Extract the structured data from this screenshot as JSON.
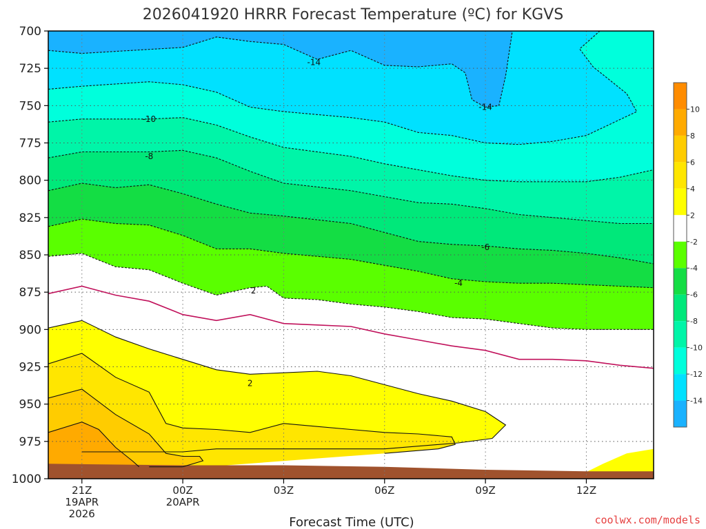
{
  "chart_data": {
    "type": "heatmap",
    "title": "2026041920 HRRR Forecast Temperature (ºC) for KGVS",
    "xlabel": "Forecast Time (UTC)",
    "credit": "coolwx.com/models",
    "y_pressure_levels": [
      700,
      725,
      750,
      775,
      800,
      825,
      850,
      875,
      900,
      925,
      950,
      975,
      1000
    ],
    "ylim": [
      700,
      1000
    ],
    "x_range_hours": [
      -1,
      17
    ],
    "x_ticks": [
      {
        "hour": 0,
        "lines": [
          "21Z",
          "19APR",
          "2026"
        ]
      },
      {
        "hour": 3,
        "lines": [
          "00Z",
          "20APR"
        ]
      },
      {
        "hour": 6,
        "lines": [
          "03Z"
        ]
      },
      {
        "hour": 9,
        "lines": [
          "06Z"
        ]
      },
      {
        "hour": 12,
        "lines": [
          "09Z"
        ]
      },
      {
        "hour": 15,
        "lines": [
          "12Z"
        ]
      }
    ],
    "grid": true,
    "colorbar": {
      "position": "right",
      "bins": [
        {
          "min": -16,
          "max": -14,
          "color": "#1ab2ff"
        },
        {
          "min": -14,
          "max": -12,
          "color": "#00e1ff"
        },
        {
          "min": -12,
          "max": -10,
          "color": "#00ffdc"
        },
        {
          "min": -10,
          "max": -8,
          "color": "#00f5a8"
        },
        {
          "min": -8,
          "max": -6,
          "color": "#00e87a"
        },
        {
          "min": -6,
          "max": -4,
          "color": "#14dd44"
        },
        {
          "min": -4,
          "max": -2,
          "color": "#5aff00"
        },
        {
          "min": -2,
          "max": 2,
          "color": "#ffffff"
        },
        {
          "min": 2,
          "max": 4,
          "color": "#ffff00"
        },
        {
          "min": 4,
          "max": 6,
          "color": "#ffe600"
        },
        {
          "min": 6,
          "max": 8,
          "color": "#ffcc00"
        },
        {
          "min": 8,
          "max": 10,
          "color": "#ffaa00"
        },
        {
          "min": 10,
          "max": 12,
          "color": "#ff8c00"
        }
      ],
      "tick_labels": [
        "10",
        "8",
        "6",
        "4",
        "2",
        "-2",
        "-4",
        "-6",
        "-8",
        "-10",
        "-12",
        "-14"
      ]
    },
    "contour_labels": [
      {
        "value": "-14",
        "hour": 6.9,
        "p": 721
      },
      {
        "value": "-14",
        "hour": 12.0,
        "p": 751
      },
      {
        "value": "-10",
        "hour": 2.0,
        "p": 759
      },
      {
        "value": "-8",
        "hour": 2.0,
        "p": 784
      },
      {
        "value": "-6",
        "hour": 12.0,
        "p": 845
      },
      {
        "value": "-4",
        "hour": 11.2,
        "p": 869
      },
      {
        "value": "2",
        "hour": 5.1,
        "p": 874
      },
      {
        "value": "2",
        "hour": 5.0,
        "p": 936
      }
    ],
    "isotherms": [
      {
        "temp": -14,
        "style": "dashed",
        "points": [
          [
            -1,
            713
          ],
          [
            0,
            715
          ],
          [
            3,
            711
          ],
          [
            4,
            704
          ],
          [
            5,
            707
          ],
          [
            6,
            709
          ],
          [
            7,
            719
          ],
          [
            8,
            713
          ],
          [
            9,
            723
          ],
          [
            10,
            724
          ],
          [
            11,
            722
          ],
          [
            11.4,
            728
          ],
          [
            11.6,
            746
          ],
          [
            12,
            751
          ],
          [
            12.4,
            750
          ],
          [
            12.6,
            730
          ],
          [
            12.8,
            700
          ]
        ]
      },
      {
        "temp": -12,
        "style": "dashed",
        "points": [
          [
            -1,
            739
          ],
          [
            0,
            737
          ],
          [
            2,
            734
          ],
          [
            3,
            736
          ],
          [
            4,
            741
          ],
          [
            5,
            751
          ],
          [
            6,
            754
          ],
          [
            8,
            758
          ],
          [
            9,
            761
          ],
          [
            10,
            768
          ],
          [
            11,
            770
          ],
          [
            12,
            775
          ],
          [
            13,
            776
          ],
          [
            14,
            774
          ],
          [
            15,
            770
          ],
          [
            16.5,
            754
          ],
          [
            16.2,
            742
          ],
          [
            15.2,
            724
          ],
          [
            14.8,
            712
          ],
          [
            15.4,
            700
          ]
        ]
      },
      {
        "temp": -10,
        "style": "dashed",
        "points": [
          [
            -1,
            761
          ],
          [
            0,
            759
          ],
          [
            2,
            759
          ],
          [
            3,
            758
          ],
          [
            4,
            763
          ],
          [
            5,
            771
          ],
          [
            6,
            778
          ],
          [
            8,
            784
          ],
          [
            9,
            789
          ],
          [
            10,
            793
          ],
          [
            11,
            797
          ],
          [
            12,
            800
          ],
          [
            13,
            801
          ],
          [
            14,
            801
          ],
          [
            15,
            801
          ],
          [
            16,
            798
          ],
          [
            17,
            793
          ]
        ]
      },
      {
        "temp": -8,
        "style": "dashed",
        "points": [
          [
            -1,
            785
          ],
          [
            0,
            781
          ],
          [
            2,
            781
          ],
          [
            3,
            780
          ],
          [
            4,
            785
          ],
          [
            5,
            794
          ],
          [
            6,
            802
          ],
          [
            8,
            807
          ],
          [
            9,
            811
          ],
          [
            10,
            815
          ],
          [
            11,
            816
          ],
          [
            12,
            819
          ],
          [
            13,
            823
          ],
          [
            14,
            825
          ],
          [
            15,
            827
          ],
          [
            16,
            829
          ],
          [
            17,
            829
          ]
        ]
      },
      {
        "temp": -6,
        "style": "dashed",
        "points": [
          [
            -1,
            807
          ],
          [
            0,
            802
          ],
          [
            1,
            805
          ],
          [
            2,
            803
          ],
          [
            3,
            809
          ],
          [
            4,
            816
          ],
          [
            5,
            822
          ],
          [
            6,
            824
          ],
          [
            8,
            829
          ],
          [
            9,
            835
          ],
          [
            10,
            841
          ],
          [
            11,
            843
          ],
          [
            12,
            844
          ],
          [
            13,
            846
          ],
          [
            14,
            847
          ],
          [
            15,
            849
          ],
          [
            16,
            852
          ],
          [
            17,
            856
          ]
        ]
      },
      {
        "temp": -4,
        "style": "dashed",
        "points": [
          [
            -1,
            831
          ],
          [
            0,
            826
          ],
          [
            1,
            829
          ],
          [
            2,
            830
          ],
          [
            3,
            837
          ],
          [
            4,
            846
          ],
          [
            5,
            846
          ],
          [
            6,
            849
          ],
          [
            8,
            853
          ],
          [
            9,
            857
          ],
          [
            10,
            861
          ],
          [
            11,
            866
          ],
          [
            12,
            868
          ],
          [
            13,
            869
          ],
          [
            14,
            869
          ],
          [
            15,
            870
          ],
          [
            16,
            871
          ],
          [
            17,
            872
          ]
        ]
      },
      {
        "temp": -2,
        "style": "dashed",
        "points": [
          [
            -1,
            851
          ],
          [
            0,
            849
          ],
          [
            1,
            858
          ],
          [
            2,
            860
          ],
          [
            3,
            869
          ],
          [
            4,
            877
          ],
          [
            5,
            872
          ],
          [
            5.5,
            871
          ],
          [
            6,
            879
          ],
          [
            7,
            880
          ],
          [
            8,
            883
          ],
          [
            9,
            885
          ],
          [
            10,
            888
          ],
          [
            11,
            892
          ],
          [
            12,
            893
          ],
          [
            13,
            896
          ],
          [
            14,
            899
          ],
          [
            15,
            900
          ],
          [
            17,
            900
          ]
        ]
      },
      {
        "temp": 2,
        "style": "solid",
        "points": [
          [
            -1,
            876
          ],
          [
            0,
            871
          ],
          [
            1,
            877
          ],
          [
            2,
            881
          ],
          [
            3,
            890
          ],
          [
            4,
            894
          ],
          [
            5,
            890
          ],
          [
            6,
            896
          ],
          [
            7,
            897
          ],
          [
            8,
            898
          ],
          [
            9,
            903
          ],
          [
            10,
            907
          ],
          [
            11,
            911
          ],
          [
            12,
            914
          ],
          [
            13,
            920
          ],
          [
            14,
            920
          ],
          [
            15,
            921
          ],
          [
            16,
            924
          ],
          [
            17,
            926
          ]
        ]
      },
      {
        "temp": 4,
        "style": "solid",
        "points": [
          [
            -1,
            899
          ],
          [
            0,
            894
          ],
          [
            1,
            905
          ],
          [
            2,
            913
          ],
          [
            3,
            920
          ],
          [
            4,
            927
          ],
          [
            5,
            930
          ],
          [
            6,
            929
          ],
          [
            7,
            928
          ],
          [
            8,
            931
          ],
          [
            9,
            937
          ],
          [
            10,
            943
          ],
          [
            11,
            948
          ],
          [
            12,
            955
          ],
          [
            12.6,
            964
          ],
          [
            12.2,
            973
          ],
          [
            11.2,
            976
          ],
          [
            9,
            980
          ],
          [
            8,
            980
          ],
          [
            7,
            980
          ],
          [
            6,
            980
          ],
          [
            5,
            980
          ],
          [
            4,
            980
          ],
          [
            3,
            982
          ],
          [
            2,
            982
          ],
          [
            1,
            982
          ],
          [
            0,
            982
          ]
        ]
      },
      {
        "temp": 6,
        "style": "solid",
        "points": [
          [
            -1,
            923
          ],
          [
            0,
            916
          ],
          [
            1,
            932
          ],
          [
            2,
            942
          ],
          [
            2.5,
            963
          ],
          [
            3,
            966
          ],
          [
            4,
            967
          ],
          [
            5,
            969
          ],
          [
            6,
            963
          ],
          [
            7,
            965
          ],
          [
            8,
            967
          ],
          [
            9,
            969
          ],
          [
            10,
            970
          ],
          [
            11,
            972
          ],
          [
            11.1,
            977
          ],
          [
            10.6,
            980
          ],
          [
            9,
            983
          ]
        ]
      },
      {
        "temp": 8,
        "style": "solid",
        "points": [
          [
            -1,
            946
          ],
          [
            0,
            940
          ],
          [
            1,
            957
          ],
          [
            2,
            970
          ],
          [
            2.5,
            983
          ],
          [
            3,
            985
          ],
          [
            3.5,
            985
          ],
          [
            3.6,
            988
          ],
          [
            3,
            992
          ],
          [
            2,
            992
          ]
        ]
      },
      {
        "temp": 10,
        "style": "solid",
        "points": [
          [
            -1,
            969
          ],
          [
            0,
            962
          ],
          [
            0.5,
            967
          ],
          [
            1,
            979
          ],
          [
            1.5,
            988
          ],
          [
            1.7,
            992
          ]
        ]
      }
    ],
    "regions": [
      {
        "color_bin": "#00e87a",
        "upper_isotherm": -8,
        "lower_isotherm": -6
      },
      {
        "color_bin": "#14dd44",
        "upper_isotherm": -6,
        "lower_isotherm": -4
      },
      {
        "color_bin": "#5aff00",
        "upper_isotherm": -4,
        "lower_isotherm": -2
      },
      {
        "color_bin": "#ffffff",
        "upper_isotherm": -2,
        "lower_isotherm": 2
      },
      {
        "color_bin": "#ffff00",
        "upper_isotherm": 2,
        "lower_isotherm": 4
      }
    ],
    "warm_pocket_right": {
      "color": "#ffff00",
      "points": [
        [
          14.6,
          1000
        ],
        [
          15.5,
          990
        ],
        [
          16.2,
          983
        ],
        [
          17,
          980
        ],
        [
          17,
          1000
        ]
      ]
    },
    "surface": {
      "color": "#a0522d",
      "points": [
        [
          -1,
          990
        ],
        [
          3,
          991
        ],
        [
          6,
          991
        ],
        [
          9,
          992
        ],
        [
          12,
          994
        ],
        [
          15,
          995
        ],
        [
          17,
          995
        ]
      ]
    }
  }
}
